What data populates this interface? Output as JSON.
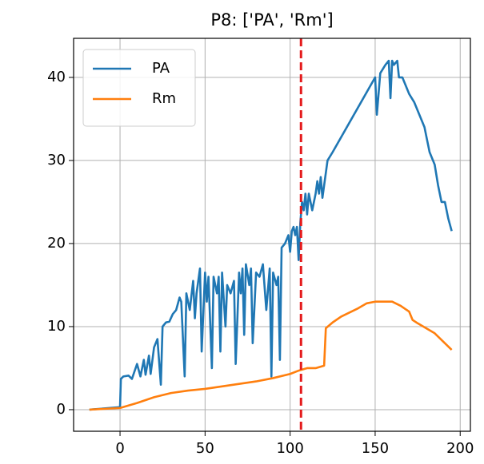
{
  "chart_data": {
    "type": "line",
    "title": "P8: ['PA', 'Rm']",
    "xlim": [
      -27.3,
      206
    ],
    "ylim": [
      -2.6,
      44.7
    ],
    "xticks": [
      0,
      50,
      100,
      150,
      200
    ],
    "yticks": [
      0,
      10,
      20,
      30,
      40
    ],
    "grid": true,
    "legend": "upper left",
    "vline": {
      "x": 106.4,
      "color": "#e41a1c"
    },
    "series": [
      {
        "name": "PA",
        "color": "#1f77b4",
        "x": [
          -18,
          0,
          0.5,
          2,
          5,
          7,
          10,
          12,
          14,
          15,
          17,
          18,
          20,
          22,
          24,
          25,
          27,
          29,
          31,
          33,
          35,
          36,
          38,
          39,
          41,
          43,
          44,
          45,
          47,
          48,
          50,
          51,
          52,
          54,
          55,
          57,
          58,
          59,
          60,
          62,
          63,
          65,
          67,
          68,
          70,
          71,
          72,
          73,
          74,
          76,
          77,
          78,
          80,
          82,
          84,
          86,
          88,
          89,
          90,
          92,
          93,
          94,
          95,
          97,
          99,
          100,
          101,
          102,
          103,
          104,
          105,
          106,
          107,
          108,
          109,
          110,
          111,
          112,
          113,
          115,
          116,
          117,
          118,
          119,
          120,
          122,
          125,
          150,
          151,
          153,
          156,
          158,
          159,
          160,
          161,
          163,
          164,
          166,
          168,
          170,
          173,
          175,
          177,
          179,
          180,
          182,
          185,
          187,
          189,
          191,
          193,
          195
        ],
        "values": [
          0,
          0.3,
          3.7,
          4,
          4.1,
          3.7,
          5.5,
          4,
          6,
          4.2,
          6.5,
          4.3,
          7.5,
          8.5,
          3,
          10,
          10.5,
          10.6,
          11.5,
          12,
          13.5,
          13,
          4,
          14,
          12,
          15.5,
          11,
          14,
          17,
          7,
          16.5,
          13,
          16,
          5,
          16,
          14,
          16,
          7,
          16.5,
          10,
          15,
          14,
          15.5,
          5.5,
          16.5,
          14,
          17,
          9,
          17.5,
          15,
          17,
          8,
          16.5,
          16,
          17.5,
          12,
          17,
          4,
          16.5,
          15,
          16,
          6,
          19.5,
          20,
          21,
          19,
          21.5,
          22,
          21,
          22,
          18,
          22.5,
          25,
          24,
          26,
          23.5,
          26,
          25,
          24,
          26,
          27.5,
          26,
          28,
          25.5,
          27,
          30,
          31,
          40,
          35.5,
          40.5,
          41.5,
          42,
          37.5,
          42,
          41.5,
          42,
          40,
          40,
          39,
          38,
          37,
          36,
          35,
          34,
          33,
          31,
          29.5,
          27,
          25,
          25,
          23,
          21.5
        ]
      },
      {
        "name": "Rm",
        "color": "#ff7f0e",
        "x": [
          -18,
          0,
          5,
          10,
          20,
          30,
          40,
          50,
          60,
          70,
          80,
          90,
          100,
          105,
          110,
          115,
          120,
          121,
          125,
          130,
          140,
          145,
          150,
          160,
          165,
          170,
          172,
          175,
          180,
          185,
          190,
          195
        ],
        "values": [
          0,
          0.2,
          0.5,
          0.8,
          1.5,
          2.0,
          2.3,
          2.5,
          2.8,
          3.1,
          3.4,
          3.8,
          4.3,
          4.7,
          5.0,
          5.0,
          5.3,
          9.8,
          10.5,
          11.2,
          12.2,
          12.8,
          13,
          13,
          12.5,
          11.8,
          10.8,
          10.4,
          9.8,
          9.2,
          8.2,
          7.2
        ]
      }
    ]
  }
}
